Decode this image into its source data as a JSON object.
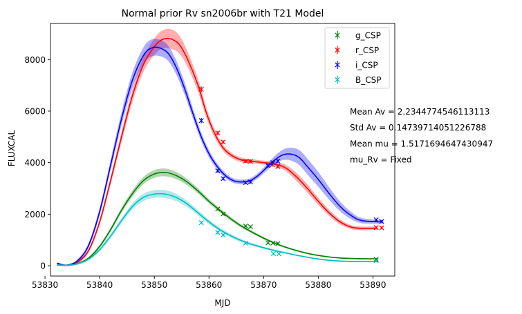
{
  "chart_data": {
    "type": "line",
    "title": "Normal prior Rv sn2006br with T21 Model",
    "xlabel": "MJD",
    "ylabel": "FLUXCAL",
    "xlim": [
      53831,
      53894
    ],
    "ylim": [
      -400,
      9400
    ],
    "xticks": [
      53830,
      53840,
      53850,
      53860,
      53870,
      53880,
      53890
    ],
    "xtick_labels": [
      "53830",
      "53840",
      "53850",
      "53860",
      "53870",
      "53880",
      "53890"
    ],
    "yticks": [
      0,
      2000,
      4000,
      6000,
      8000
    ],
    "ytick_labels": [
      "0",
      "2000",
      "4000",
      "6000",
      "8000"
    ],
    "grid": false,
    "legend_position": "top-right",
    "annotations": [
      "Mean Av = 2.2344774546113113",
      "Std Av = 0.14739714051226788",
      "Mean mu = 1.5171694647430947",
      "mu_Rv = Fixed"
    ],
    "series": [
      {
        "name": "g_CSP",
        "color": "#008000",
        "model": {
          "x": [
            53832.2,
            53834,
            53836,
            53838,
            53840,
            53842,
            53844,
            53846,
            53848,
            53850,
            53852,
            53854,
            53856,
            53858,
            53860,
            53862,
            53864,
            53866,
            53868,
            53870,
            53872,
            53874,
            53876,
            53878,
            53880,
            53882,
            53884,
            53886,
            53888,
            53890.8
          ],
          "y": [
            30,
            20,
            90,
            300,
            750,
            1400,
            2150,
            2800,
            3300,
            3560,
            3620,
            3500,
            3250,
            2900,
            2500,
            2150,
            1820,
            1530,
            1290,
            1070,
            880,
            720,
            590,
            480,
            400,
            340,
            300,
            280,
            270,
            270
          ],
          "band": [
            30,
            30,
            40,
            50,
            60,
            80,
            100,
            120,
            140,
            150,
            150,
            140,
            120,
            100,
            90,
            80,
            70,
            60,
            50,
            45,
            40,
            35,
            30,
            30,
            30,
            25,
            25,
            25,
            25,
            25
          ]
        },
        "points": [
          {
            "x": 53861.6,
            "y": 2200,
            "err": 60
          },
          {
            "x": 53862.6,
            "y": 2010,
            "err": 60
          },
          {
            "x": 53866.7,
            "y": 1540,
            "err": 50
          },
          {
            "x": 53867.6,
            "y": 1510,
            "err": 50
          },
          {
            "x": 53870.8,
            "y": 890,
            "err": 50
          },
          {
            "x": 53871.7,
            "y": 880,
            "err": 50
          },
          {
            "x": 53872.6,
            "y": 860,
            "err": 50
          },
          {
            "x": 53890.6,
            "y": 250,
            "err": 40
          }
        ]
      },
      {
        "name": "r_CSP",
        "color": "#ff0000",
        "model": {
          "x": [
            53832.2,
            53834,
            53836,
            53838,
            53840,
            53842,
            53844,
            53846,
            53848,
            53850,
            53851.5,
            53853,
            53854.5,
            53856,
            53858,
            53859.5,
            53861,
            53862.5,
            53864,
            53866,
            53868,
            53870,
            53872,
            53874,
            53876,
            53878,
            53880,
            53882,
            53884,
            53886,
            53888,
            53890.8
          ],
          "y": [
            40,
            20,
            150,
            600,
            1700,
            3300,
            5000,
            6600,
            7800,
            8500,
            8780,
            8800,
            8600,
            8050,
            7000,
            5950,
            5150,
            4600,
            4300,
            4100,
            4050,
            4000,
            3950,
            3800,
            3450,
            3000,
            2500,
            2050,
            1700,
            1500,
            1450,
            1460
          ],
          "band": [
            30,
            30,
            50,
            80,
            120,
            160,
            200,
            240,
            280,
            320,
            350,
            380,
            350,
            300,
            250,
            200,
            150,
            120,
            100,
            90,
            80,
            80,
            90,
            120,
            160,
            160,
            140,
            120,
            100,
            80,
            70,
            60
          ]
        },
        "points": [
          {
            "x": 53858.6,
            "y": 6850,
            "err": 100
          },
          {
            "x": 53861.6,
            "y": 5150,
            "err": 80
          },
          {
            "x": 53862.6,
            "y": 4800,
            "err": 80
          },
          {
            "x": 53866.7,
            "y": 4060,
            "err": 70
          },
          {
            "x": 53867.6,
            "y": 4050,
            "err": 70
          },
          {
            "x": 53871.6,
            "y": 3920,
            "err": 70
          },
          {
            "x": 53872.6,
            "y": 3850,
            "err": 70
          },
          {
            "x": 53890.6,
            "y": 1480,
            "err": 50
          },
          {
            "x": 53891.6,
            "y": 1470,
            "err": 50
          }
        ]
      },
      {
        "name": "i_CSP",
        "color": "#0000ff",
        "model": {
          "x": [
            53832.2,
            53834,
            53836,
            53838,
            53840,
            53842,
            53844,
            53846,
            53848,
            53849.5,
            53851,
            53852.5,
            53854,
            53855.5,
            53857,
            53858.5,
            53860,
            53861.5,
            53863,
            53864.5,
            53866,
            53867.5,
            53869,
            53870.5,
            53872,
            53873.5,
            53875,
            53876.5,
            53878,
            53880,
            53882,
            53884,
            53886,
            53888,
            53891.8
          ],
          "y": [
            100,
            20,
            200,
            800,
            2100,
            3900,
            5700,
            7200,
            8150,
            8450,
            8450,
            8250,
            7700,
            6900,
            5950,
            5050,
            4350,
            3850,
            3500,
            3300,
            3250,
            3300,
            3500,
            3800,
            4100,
            4300,
            4330,
            4200,
            3850,
            3350,
            2800,
            2300,
            1950,
            1750,
            1700
          ],
          "band": [
            30,
            30,
            60,
            100,
            150,
            200,
            260,
            300,
            320,
            330,
            320,
            300,
            270,
            240,
            200,
            170,
            140,
            120,
            100,
            90,
            90,
            90,
            100,
            120,
            150,
            200,
            250,
            290,
            310,
            290,
            240,
            190,
            140,
            100,
            70
          ]
        },
        "points": [
          {
            "x": 53858.6,
            "y": 5630,
            "err": 100
          },
          {
            "x": 53861.6,
            "y": 3680,
            "err": 70
          },
          {
            "x": 53862.6,
            "y": 3380,
            "err": 70
          },
          {
            "x": 53866.7,
            "y": 3220,
            "err": 60
          },
          {
            "x": 53867.6,
            "y": 3250,
            "err": 60
          },
          {
            "x": 53870.8,
            "y": 3880,
            "err": 70
          },
          {
            "x": 53871.7,
            "y": 4000,
            "err": 70
          },
          {
            "x": 53872.6,
            "y": 4060,
            "err": 70
          },
          {
            "x": 53890.6,
            "y": 1780,
            "err": 50
          },
          {
            "x": 53891.6,
            "y": 1720,
            "err": 50
          }
        ]
      },
      {
        "name": "B_CSP",
        "color": "#00bfbf",
        "model": {
          "x": [
            53832.2,
            53834,
            53836,
            53838,
            53840,
            53842,
            53844,
            53846,
            53848,
            53850,
            53852,
            53854,
            53856,
            53858,
            53860,
            53862,
            53864,
            53866,
            53868,
            53870,
            53872,
            53874,
            53876,
            53878,
            53880,
            53882,
            53884,
            53886,
            53888,
            53890.8
          ],
          "y": [
            40,
            20,
            80,
            260,
            620,
            1150,
            1750,
            2300,
            2650,
            2780,
            2780,
            2650,
            2400,
            2050,
            1700,
            1400,
            1160,
            970,
            820,
            700,
            590,
            500,
            410,
            330,
            260,
            210,
            180,
            165,
            160,
            160
          ],
          "band": [
            30,
            30,
            40,
            50,
            60,
            80,
            100,
            120,
            140,
            150,
            150,
            140,
            120,
            100,
            90,
            80,
            70,
            60,
            50,
            45,
            40,
            35,
            30,
            30,
            30,
            25,
            25,
            25,
            25,
            25
          ]
        },
        "points": [
          {
            "x": 53858.6,
            "y": 1670,
            "err": 50
          },
          {
            "x": 53861.6,
            "y": 1290,
            "err": 50
          },
          {
            "x": 53862.6,
            "y": 1190,
            "err": 50
          },
          {
            "x": 53866.7,
            "y": 880,
            "err": 40
          },
          {
            "x": 53871.8,
            "y": 470,
            "err": 40
          },
          {
            "x": 53872.8,
            "y": 460,
            "err": 40
          },
          {
            "x": 53890.6,
            "y": 200,
            "err": 40
          }
        ]
      }
    ]
  }
}
